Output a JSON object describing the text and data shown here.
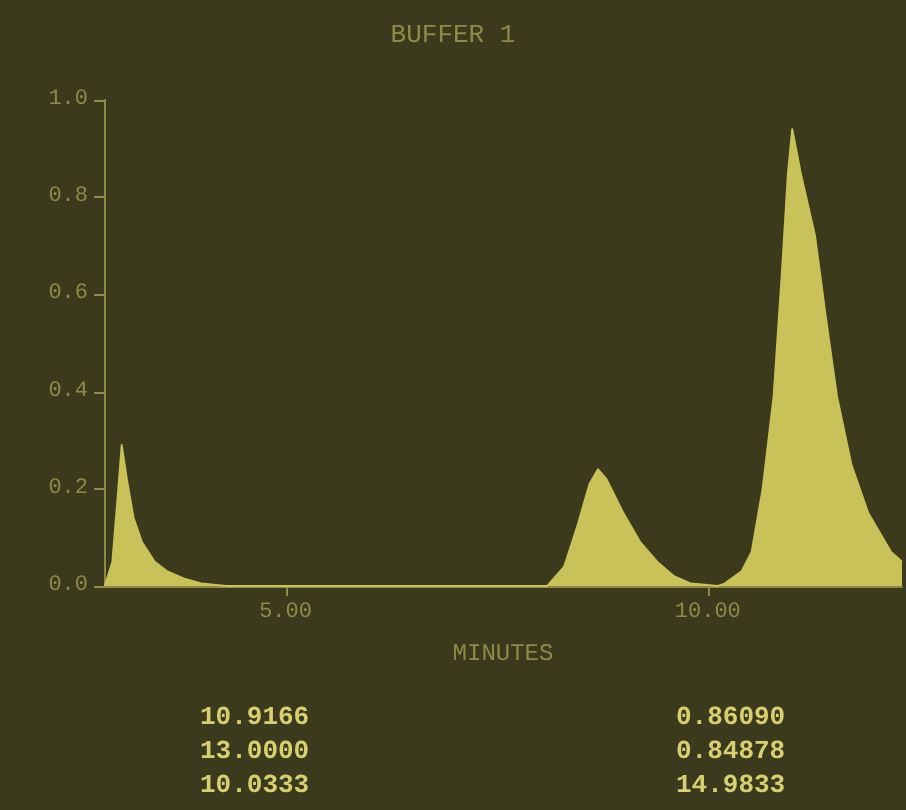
{
  "chart_data": {
    "type": "area",
    "title": "BUFFER 1",
    "xlabel": "MINUTES",
    "x": [
      2.86,
      2.95,
      3.02,
      3.06,
      3.12,
      3.2,
      3.3,
      3.45,
      3.6,
      3.8,
      4.0,
      4.3,
      6.0,
      8.1,
      8.3,
      8.45,
      8.6,
      8.7,
      8.8,
      9.0,
      9.2,
      9.4,
      9.6,
      9.8,
      10.12,
      10.2,
      10.4,
      10.52,
      10.65,
      10.78,
      10.88,
      10.95,
      11.0,
      11.1,
      11.27,
      11.4,
      11.53,
      11.7,
      11.9,
      12.17,
      12.3
    ],
    "series": [
      {
        "color": "#c9c258",
        "values": [
          0,
          0.05,
          0.2,
          0.29,
          0.22,
          0.14,
          0.09,
          0.05,
          0.03,
          0.015,
          0.005,
          0,
          0,
          0,
          0.04,
          0.12,
          0.21,
          0.24,
          0.22,
          0.15,
          0.09,
          0.05,
          0.02,
          0.005,
          0,
          0.005,
          0.03,
          0.07,
          0.2,
          0.39,
          0.65,
          0.85,
          0.94,
          0.85,
          0.72,
          0.55,
          0.39,
          0.25,
          0.15,
          0.07,
          0.05
        ]
      }
    ],
    "xlim": [
      2.85,
      12.3
    ],
    "xticks": [
      {
        "value": 5,
        "label": "5.00"
      },
      {
        "value": 10,
        "label": "10.00"
      }
    ],
    "ylim": [
      0,
      1
    ],
    "yticks": [
      {
        "value": 0,
        "label": "0.0"
      },
      {
        "value": 0.2,
        "label": "0.2"
      },
      {
        "value": 0.4,
        "label": "0.4"
      },
      {
        "value": 0.6,
        "label": "0.6"
      },
      {
        "value": 0.8,
        "label": "0.8"
      },
      {
        "value": 1,
        "label": "1.0"
      }
    ],
    "marker": "none",
    "annotations": [
      "10.9166",
      "13.0000",
      "10.0333",
      "0.86090",
      "0.84878",
      "14.9833"
    ]
  }
}
